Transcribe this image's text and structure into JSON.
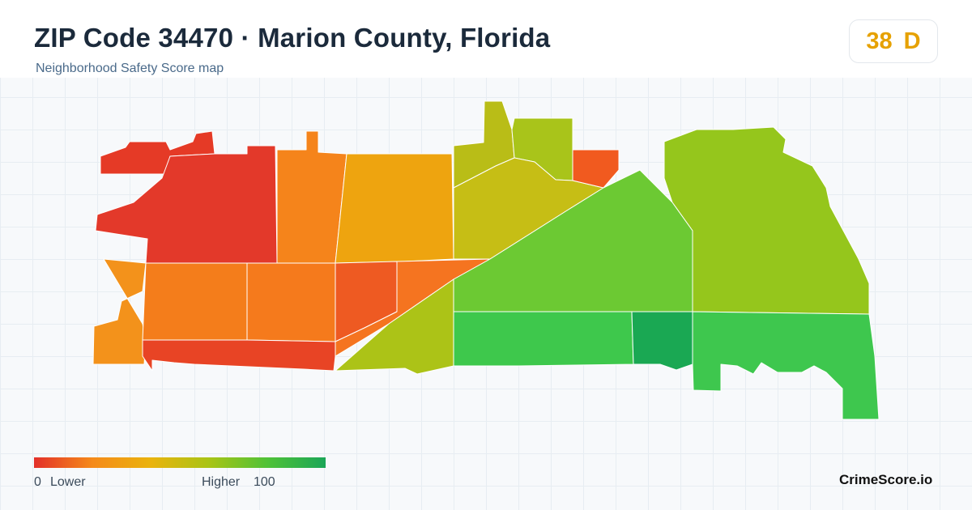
{
  "header": {
    "title": "ZIP Code 34470 · Marion County, Florida",
    "subtitle": "Neighborhood Safety Score map"
  },
  "score": {
    "value": "38",
    "grade": "D",
    "color": "#e6a100"
  },
  "legend": {
    "min_label": "0",
    "low_label": "Lower",
    "high_label": "Higher",
    "max_label": "100",
    "gradient": [
      "#e3302a",
      "#f58a1a",
      "#eab30d",
      "#a9c415",
      "#4fc237",
      "#1ba657"
    ]
  },
  "regions": [
    {
      "id": "r1",
      "color": "#e53a26"
    },
    {
      "id": "r2",
      "color": "#e3392a"
    },
    {
      "id": "r3",
      "color": "#f5841b"
    },
    {
      "id": "r4",
      "color": "#eea40f"
    },
    {
      "id": "r5",
      "color": "#b9bd17"
    },
    {
      "id": "r6",
      "color": "#a9c41a"
    },
    {
      "id": "r7",
      "color": "#c6be15"
    },
    {
      "id": "r8",
      "color": "#f15a1f"
    },
    {
      "id": "r9",
      "color": "#95c61c"
    },
    {
      "id": "r10",
      "color": "#f3921b"
    },
    {
      "id": "r11",
      "color": "#f47d1b"
    },
    {
      "id": "r12",
      "color": "#f57a1c"
    },
    {
      "id": "r13",
      "color": "#ee5a22"
    },
    {
      "id": "r14",
      "color": "#f57420"
    },
    {
      "id": "r15",
      "color": "#e84425"
    },
    {
      "id": "r16",
      "color": "#acc317"
    },
    {
      "id": "r17",
      "color": "#6cc933"
    },
    {
      "id": "r18",
      "color": "#3ec84c"
    },
    {
      "id": "r19",
      "color": "#1aa853"
    },
    {
      "id": "r20",
      "color": "#3ec74e"
    }
  ],
  "brand": "CrimeScore.io"
}
